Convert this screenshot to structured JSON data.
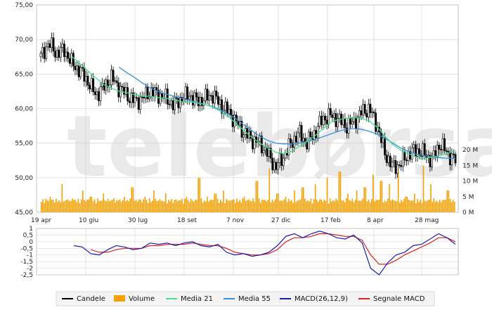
{
  "watermark": "telebørsa",
  "colors": {
    "candles": "#000000",
    "volume": "#f5a000",
    "ma21": "#45e08a",
    "ma55": "#3a8fdd",
    "macd": "#1c1cb0",
    "signal": "#dd2222",
    "grid": "#cfcfcf"
  },
  "chart_data": [
    {
      "type": "candlestick",
      "role": "price",
      "ylim": [
        45,
        75
      ],
      "y_ticks": [
        "75,00",
        "70,00",
        "65,00",
        "60,00",
        "55,00",
        "50,00",
        "45,00"
      ],
      "x_ticks": [
        "19 apr",
        "10 giu",
        "30 lug",
        "18 set",
        "7 nov",
        "27 dic",
        "17 feb",
        "8 apr",
        "28 mag"
      ],
      "close_approx": [
        67.5,
        69.5,
        68,
        68.5,
        66.5,
        65.5,
        64,
        62,
        63,
        64.5,
        63,
        62,
        61,
        61.5,
        62.5,
        62,
        61.5,
        60.5,
        61.5,
        62,
        61,
        61.5,
        62,
        60.5,
        59.5,
        58,
        56.5,
        55.5,
        55,
        53.5,
        51.5,
        53,
        55,
        56.5,
        55,
        56.5,
        58.5,
        59,
        58.5,
        57.5,
        58,
        59.5,
        60,
        57.5,
        53.5,
        51.5,
        52,
        53.5,
        54,
        53.5,
        52.5,
        55,
        53.5,
        52.5
      ],
      "ma21_approx": [
        null,
        null,
        null,
        null,
        67.5,
        66.5,
        65.5,
        64.5,
        63.5,
        63,
        62.5,
        62.3,
        62,
        61.8,
        61.8,
        61.6,
        61.5,
        61.3,
        61,
        61,
        60.8,
        60.6,
        60.2,
        59.6,
        58.8,
        57.8,
        56.8,
        55.8,
        55,
        54.3,
        53.7,
        53.5,
        53.8,
        54.5,
        55.2,
        56,
        57,
        58,
        58.4,
        58.6,
        58.7,
        58.6,
        58.2,
        57.3,
        56,
        54.8,
        54,
        53.5,
        53,
        52.8,
        53,
        53.2,
        53.5,
        54
      ],
      "ma55_approx": [
        null,
        null,
        null,
        null,
        null,
        null,
        null,
        null,
        null,
        null,
        66,
        65.2,
        64.5,
        63.7,
        63,
        62.5,
        62.1,
        61.8,
        61.5,
        61.2,
        60.9,
        60.6,
        60.3,
        59.8,
        59.2,
        58.5,
        57.6,
        56.8,
        56,
        55.4,
        55,
        54.9,
        54.9,
        55,
        55.2,
        55.5,
        55.9,
        56.3,
        56.7,
        57,
        57.1,
        57,
        56.7,
        56.3,
        55.7,
        55,
        54.3,
        53.8,
        53.4,
        53.2,
        53,
        52.9,
        52.8,
        52.8
      ]
    },
    {
      "type": "bar",
      "role": "volume",
      "y_ticks": [
        "20 M",
        "15 M",
        "10 M",
        "5 M",
        "0 M"
      ],
      "ylim": [
        0,
        20
      ],
      "base_level_M": 2.5,
      "spikes_M": [
        5,
        9,
        4,
        7,
        5,
        6,
        4,
        5,
        8,
        5,
        7,
        6,
        4,
        5,
        11,
        5,
        6,
        7,
        4,
        5,
        10,
        14,
        6,
        5,
        7,
        8,
        9,
        11,
        13,
        6,
        7,
        8,
        12,
        10,
        9,
        14,
        5,
        6,
        15,
        9,
        4,
        7
      ],
      "spike_positions": [
        0.02,
        0.05,
        0.08,
        0.1,
        0.12,
        0.15,
        0.17,
        0.2,
        0.22,
        0.25,
        0.27,
        0.3,
        0.32,
        0.35,
        0.38,
        0.4,
        0.42,
        0.44,
        0.46,
        0.49,
        0.52,
        0.55,
        0.57,
        0.59,
        0.61,
        0.63,
        0.66,
        0.69,
        0.72,
        0.74,
        0.76,
        0.78,
        0.8,
        0.82,
        0.84,
        0.86,
        0.88,
        0.9,
        0.92,
        0.94,
        0.96,
        0.98
      ]
    },
    {
      "type": "line",
      "role": "macd",
      "ylim": [
        -2.5,
        1
      ],
      "y_ticks": [
        "1",
        "0,5",
        "0",
        "-0,5",
        "-1",
        "-1,5",
        "-2",
        "-2,5"
      ],
      "macd_approx": [
        -0.3,
        -0.4,
        -0.9,
        -1.0,
        -0.6,
        -0.3,
        -0.4,
        -0.6,
        -0.5,
        -0.1,
        -0.2,
        -0.1,
        -0.3,
        -0.1,
        0.0,
        -0.3,
        -0.4,
        -0.2,
        -0.8,
        -1.0,
        -0.9,
        -1.1,
        -1.0,
        -0.8,
        -0.3,
        0.4,
        0.6,
        0.3,
        0.6,
        0.8,
        0.6,
        0.3,
        0.2,
        0.5,
        -0.1,
        -2.0,
        -2.5,
        -1.6,
        -1.0,
        -0.8,
        -0.3,
        -0.2,
        0.2,
        0.6,
        0.3,
        -0.2
      ],
      "signal_approx": [
        null,
        null,
        -0.6,
        -0.8,
        -0.8,
        -0.6,
        -0.5,
        -0.5,
        -0.5,
        -0.3,
        -0.3,
        -0.2,
        -0.2,
        -0.2,
        -0.1,
        -0.2,
        -0.3,
        -0.3,
        -0.5,
        -0.8,
        -0.9,
        -1.0,
        -1.0,
        -0.9,
        -0.6,
        0.0,
        0.3,
        0.3,
        0.4,
        0.6,
        0.6,
        0.5,
        0.4,
        0.4,
        0.1,
        -1.0,
        -1.7,
        -1.7,
        -1.4,
        -1.0,
        -0.7,
        -0.4,
        -0.1,
        0.3,
        0.3,
        0.0
      ]
    }
  ],
  "legend": [
    {
      "label": "Candele",
      "kind": "line",
      "color": "#000000"
    },
    {
      "label": "Volume",
      "kind": "box",
      "color": "#f5a000"
    },
    {
      "label": "Media 21",
      "kind": "line",
      "color": "#45e08a"
    },
    {
      "label": "Media 55",
      "kind": "line",
      "color": "#3a8fdd"
    },
    {
      "label": "MACD(26,12,9)",
      "kind": "line",
      "color": "#1c1cb0"
    },
    {
      "label": "Segnale MACD",
      "kind": "line",
      "color": "#dd2222"
    }
  ]
}
